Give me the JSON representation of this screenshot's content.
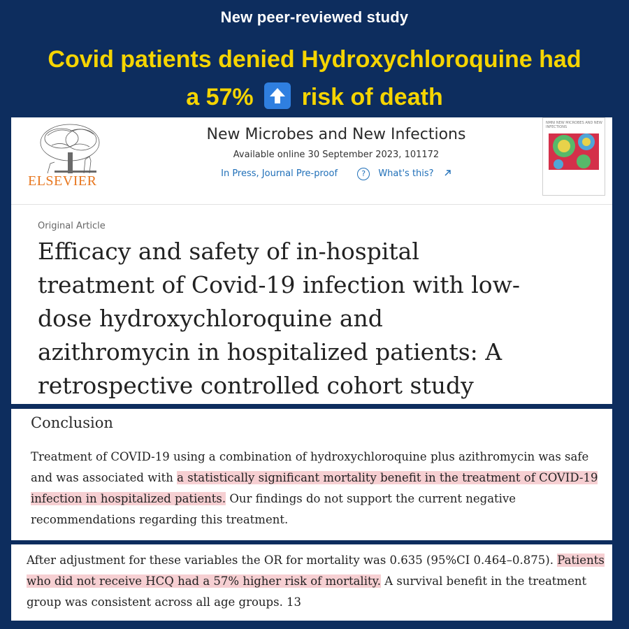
{
  "banner": {
    "kicker": "New peer-reviewed study",
    "headline_line1": "Covid patients denied Hydroxychloroquine had",
    "headline_line2_pre": "a 57%",
    "headline_line2_post": "risk of death",
    "arrow_icon": "up-arrow-emoji",
    "colors": {
      "background": "#0d2d5e",
      "kicker": "#ffffff",
      "headline": "#f5d400",
      "arrow_box": "#2f7fe0"
    }
  },
  "journal": {
    "publisher": "ELSEVIER",
    "name": "New Microbes and New Infections",
    "available": "Available online 30 September 2023, 101172",
    "in_press": "In Press, Journal Pre-proof",
    "whats_this": "What's this?",
    "whats_this_icon": "external-link-arrow",
    "cover_caption": "NMNI NEW MICROBES AND NEW INFECTIONS",
    "colors": {
      "publisher": "#e8771f",
      "link": "#1f6fb8"
    }
  },
  "article": {
    "type": "Original Article",
    "title_lines": [
      "Efficacy and safety of in-hospital",
      "treatment of Covid-19 infection with low-",
      "dose hydroxychloroquine and",
      "azithromycin in hospitalized patients: A",
      "retrospective controlled cohort study"
    ]
  },
  "conclusion": {
    "heading": "Conclusion",
    "pre": "Treatment of COVID-19 using a combination of hydroxychloroquine plus azithromycin was safe and was associated with",
    "highlight": "a statistically significant mortality benefit in the treatment of COVID-19 infection in hospitalized patients.",
    "post": "Our findings do not support the current negative recommendations regarding this treatment.",
    "highlight_color": "#f6cfd2"
  },
  "results": {
    "pre": "After adjustment for these variables the OR for mortality was 0.635 (95%CI 0.464–0.875).",
    "highlight": "Patients who did not receive HCQ had a 57% higher risk of mortality.",
    "post": "A survival benefit in the treatment group was consistent across all age groups. 13"
  }
}
